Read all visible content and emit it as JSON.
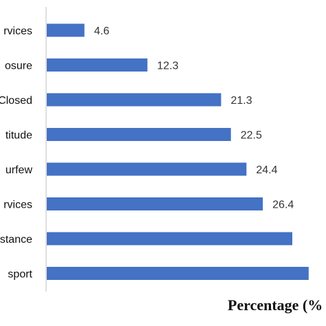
{
  "chart_data": {
    "type": "bar",
    "orientation": "horizontal",
    "categories": [
      "rvices",
      "osure",
      "Closed",
      "titude",
      "urfew",
      "rvices",
      "stance",
      "sport"
    ],
    "values": [
      4.6,
      12.3,
      21.3,
      22.5,
      24.4,
      26.4,
      30.0,
      32.0
    ],
    "data_labels": [
      "4.6",
      "12.3",
      "21.3",
      "22.5",
      "24.4",
      "26.4",
      "",
      ""
    ],
    "xlabel": "Percentage (%",
    "ylabel": "",
    "title": "",
    "grid": false,
    "legend": false,
    "colors": {
      "bar": "#4472C4",
      "axis": "#BFBFBF",
      "text": "#111111"
    }
  }
}
